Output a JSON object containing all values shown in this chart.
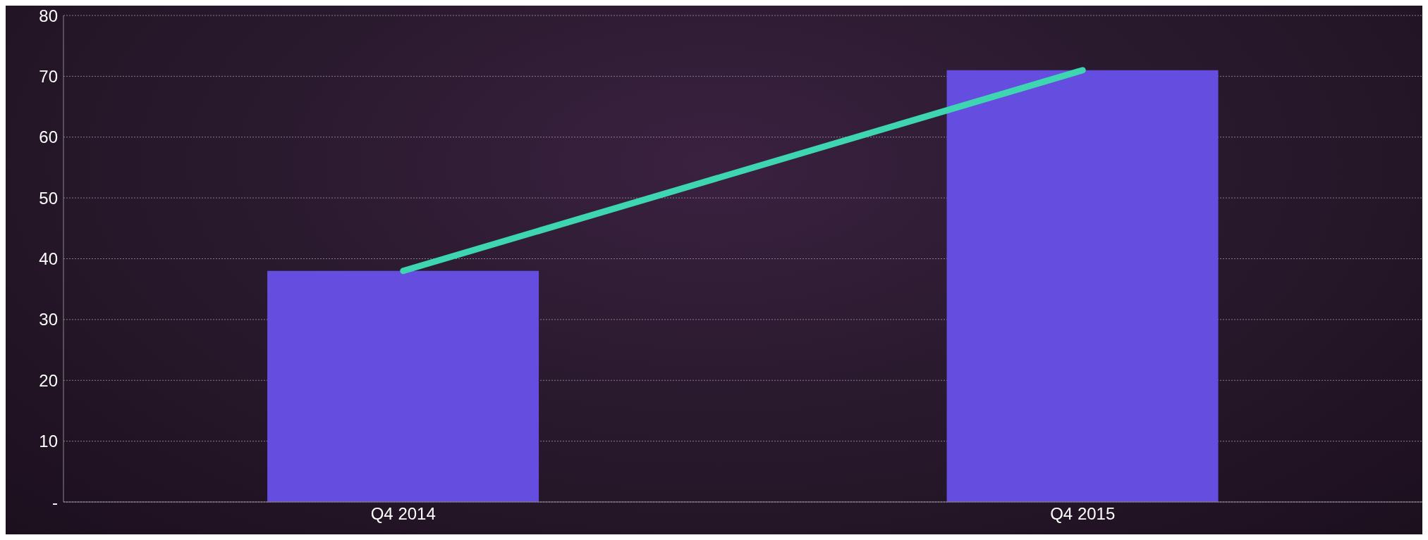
{
  "chart_data": {
    "type": "bar",
    "categories": [
      "Q4 2014",
      "Q4 2015"
    ],
    "series": [
      {
        "color": "#644ddf",
        "values": [
          38,
          71
        ]
      },
      {
        "type": "line",
        "color": "#3dd6b0",
        "values": [
          38,
          71
        ]
      }
    ],
    "ylim": [
      0,
      80
    ],
    "yticks": [
      {
        "value": 0,
        "label": "-"
      },
      10,
      20,
      30,
      40,
      50,
      60,
      70,
      80
    ],
    "grid": "y",
    "legend": false,
    "marker": "none",
    "line_style": "solid"
  }
}
